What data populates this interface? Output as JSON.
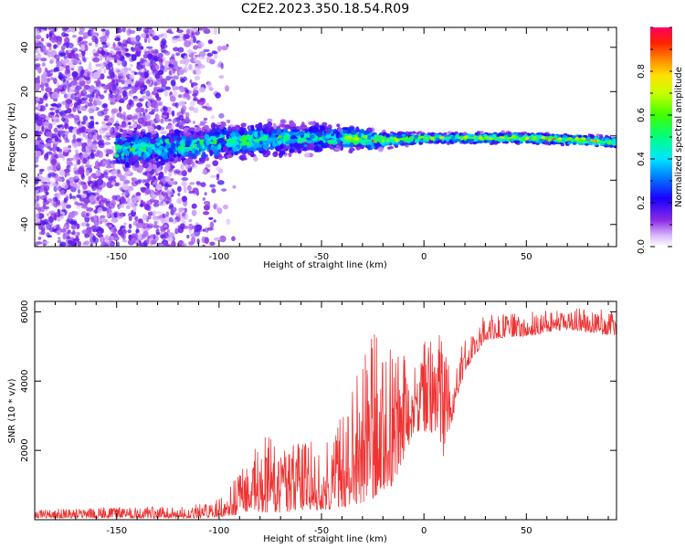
{
  "title": "C2E2.2023.350.18.54.R09",
  "chart_data": [
    {
      "type": "heatmap",
      "xlabel": "Height of straight line (km)",
      "ylabel": "Frequency (Hz)",
      "xlim": [
        -190,
        94
      ],
      "ylim": [
        -50,
        49
      ],
      "xticks": [
        -150,
        -100,
        -50,
        0,
        50
      ],
      "xtick_labels": [
        "-150",
        "-100",
        "-50",
        "0",
        "50"
      ],
      "yticks": [
        -40,
        -20,
        0,
        20,
        40
      ],
      "ytick_labels": [
        "-40",
        "-20",
        "0",
        "20",
        "40"
      ],
      "description_points": {
        "center_frequency_hz": [
          {
            "x": -145,
            "y": -6
          },
          {
            "x": -120,
            "y": -5
          },
          {
            "x": -100,
            "y": -3
          },
          {
            "x": -80,
            "y": -2
          },
          {
            "x": -60,
            "y": -1
          },
          {
            "x": -40,
            "y": -1
          },
          {
            "x": -20,
            "y": -2
          },
          {
            "x": 0,
            "y": -1
          },
          {
            "x": 20,
            "y": -1
          },
          {
            "x": 50,
            "y": -1
          },
          {
            "x": 80,
            "y": -2
          },
          {
            "x": 94,
            "y": -3
          }
        ],
        "spread_half_width_hz": [
          {
            "x": -145,
            "y": 8
          },
          {
            "x": -110,
            "y": 7
          },
          {
            "x": -90,
            "y": 7
          },
          {
            "x": -60,
            "y": 6
          },
          {
            "x": -40,
            "y": 5
          },
          {
            "x": -20,
            "y": 3
          },
          {
            "x": 0,
            "y": 2
          },
          {
            "x": 50,
            "y": 2
          },
          {
            "x": 94,
            "y": 2
          }
        ],
        "noise_region_x": [
          -190,
          -100
        ]
      },
      "colorbar": {
        "label": "Normalized spectral amplitude",
        "range": [
          0,
          1
        ],
        "ticks": [
          0.0,
          0.2,
          0.4,
          0.6,
          0.8
        ],
        "tick_labels": [
          "0.0",
          "0.2",
          "0.4",
          "0.6",
          "0.8"
        ]
      }
    },
    {
      "type": "line",
      "xlabel": "Height of straight line (km)",
      "ylabel": "SNR (10 * v/v)",
      "xlim": [
        -190,
        94
      ],
      "ylim": [
        0,
        6300
      ],
      "xticks": [
        -150,
        -100,
        -50,
        0,
        50
      ],
      "xtick_labels": [
        "-150",
        "-100",
        "-50",
        "0",
        "50"
      ],
      "yticks": [
        2000,
        4000,
        6000
      ],
      "ytick_labels": [
        "2000",
        "4000",
        "6000"
      ],
      "series": [
        {
          "name": "SNR",
          "color": "#ee3333",
          "envelope": [
            {
              "x": -190,
              "low": 50,
              "high": 300
            },
            {
              "x": -150,
              "low": 50,
              "high": 350
            },
            {
              "x": -110,
              "low": 50,
              "high": 450
            },
            {
              "x": -100,
              "low": 80,
              "high": 600
            },
            {
              "x": -90,
              "low": 150,
              "high": 1500
            },
            {
              "x": -80,
              "low": 200,
              "high": 2600
            },
            {
              "x": -70,
              "low": 200,
              "high": 2200
            },
            {
              "x": -60,
              "low": 250,
              "high": 2200
            },
            {
              "x": -45,
              "low": 300,
              "high": 2500
            },
            {
              "x": -35,
              "low": 400,
              "high": 4200
            },
            {
              "x": -25,
              "low": 600,
              "high": 5500
            },
            {
              "x": -15,
              "low": 1000,
              "high": 5000
            },
            {
              "x": -5,
              "low": 2500,
              "high": 4500
            },
            {
              "x": 5,
              "low": 2500,
              "high": 5900
            },
            {
              "x": 10,
              "low": 1600,
              "high": 5000
            },
            {
              "x": 15,
              "low": 3200,
              "high": 4200
            },
            {
              "x": 20,
              "low": 4300,
              "high": 5500
            },
            {
              "x": 30,
              "low": 5200,
              "high": 5900
            },
            {
              "x": 50,
              "low": 5300,
              "high": 6000
            },
            {
              "x": 70,
              "low": 5500,
              "high": 6100
            },
            {
              "x": 94,
              "low": 5300,
              "high": 6100
            }
          ]
        }
      ]
    }
  ]
}
